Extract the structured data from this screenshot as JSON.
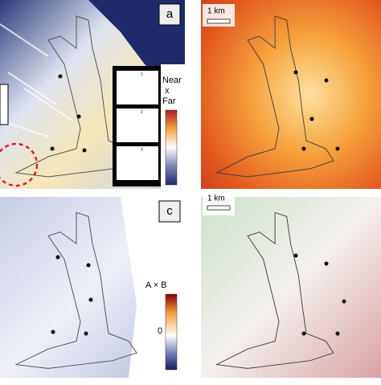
{
  "panels": [
    {
      "label": "a",
      "legend": {
        "top": "Near",
        "middle": "x",
        "bottom": "Far"
      },
      "inset": [
        "1",
        "2",
        "3"
      ]
    },
    {
      "scale": "1 km"
    },
    {
      "label": "c",
      "legend": {
        "title": "A × B",
        "zero": "0"
      }
    },
    {
      "scale": "1 km"
    }
  ]
}
